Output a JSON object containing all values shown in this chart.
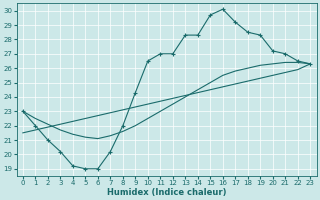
{
  "xlabel": "Humidex (Indice chaleur)",
  "xlim": [
    -0.5,
    23.5
  ],
  "ylim": [
    18.5,
    30.5
  ],
  "xticks": [
    0,
    1,
    2,
    3,
    4,
    5,
    6,
    7,
    8,
    9,
    10,
    11,
    12,
    13,
    14,
    15,
    16,
    17,
    18,
    19,
    20,
    21,
    22,
    23
  ],
  "yticks": [
    19,
    20,
    21,
    22,
    23,
    24,
    25,
    26,
    27,
    28,
    29,
    30
  ],
  "bg_color": "#cce8e8",
  "line_color": "#1a6b6b",
  "grid_color": "#ffffff",
  "line1_x": [
    0,
    1,
    2,
    3,
    4,
    5,
    6,
    7,
    8,
    9,
    10,
    11,
    12,
    13,
    14,
    15,
    16,
    17,
    18,
    19,
    20,
    21,
    22,
    23
  ],
  "line1_y": [
    23.0,
    22.0,
    21.0,
    20.2,
    19.2,
    19.0,
    19.0,
    20.2,
    22.0,
    24.3,
    26.5,
    27.0,
    27.0,
    28.3,
    28.3,
    29.7,
    30.1,
    29.2,
    28.5,
    28.3,
    27.2,
    27.0,
    26.5,
    26.3
  ],
  "line2_x": [
    0,
    1,
    2,
    3,
    4,
    5,
    6,
    7,
    8,
    9,
    10,
    11,
    12,
    13,
    14,
    15,
    16,
    17,
    18,
    19,
    20,
    21,
    22,
    23
  ],
  "line2_y": [
    21.5,
    21.7,
    21.9,
    22.1,
    22.3,
    22.5,
    22.7,
    22.9,
    23.1,
    23.3,
    23.5,
    23.7,
    23.9,
    24.1,
    24.3,
    24.5,
    24.7,
    24.9,
    25.1,
    25.3,
    25.5,
    25.7,
    25.9,
    26.3
  ],
  "line3_x": [
    0,
    1,
    2,
    3,
    4,
    5,
    6,
    7,
    8,
    9,
    10,
    11,
    12,
    13,
    14,
    15,
    16,
    17,
    18,
    19,
    20,
    21,
    22,
    23
  ],
  "line3_y": [
    23.0,
    22.5,
    22.1,
    21.7,
    21.4,
    21.2,
    21.1,
    21.3,
    21.6,
    22.0,
    22.5,
    23.0,
    23.5,
    24.0,
    24.5,
    25.0,
    25.5,
    25.8,
    26.0,
    26.2,
    26.3,
    26.4,
    26.4,
    26.3
  ],
  "figsize": [
    3.2,
    2.0
  ],
  "dpi": 100
}
